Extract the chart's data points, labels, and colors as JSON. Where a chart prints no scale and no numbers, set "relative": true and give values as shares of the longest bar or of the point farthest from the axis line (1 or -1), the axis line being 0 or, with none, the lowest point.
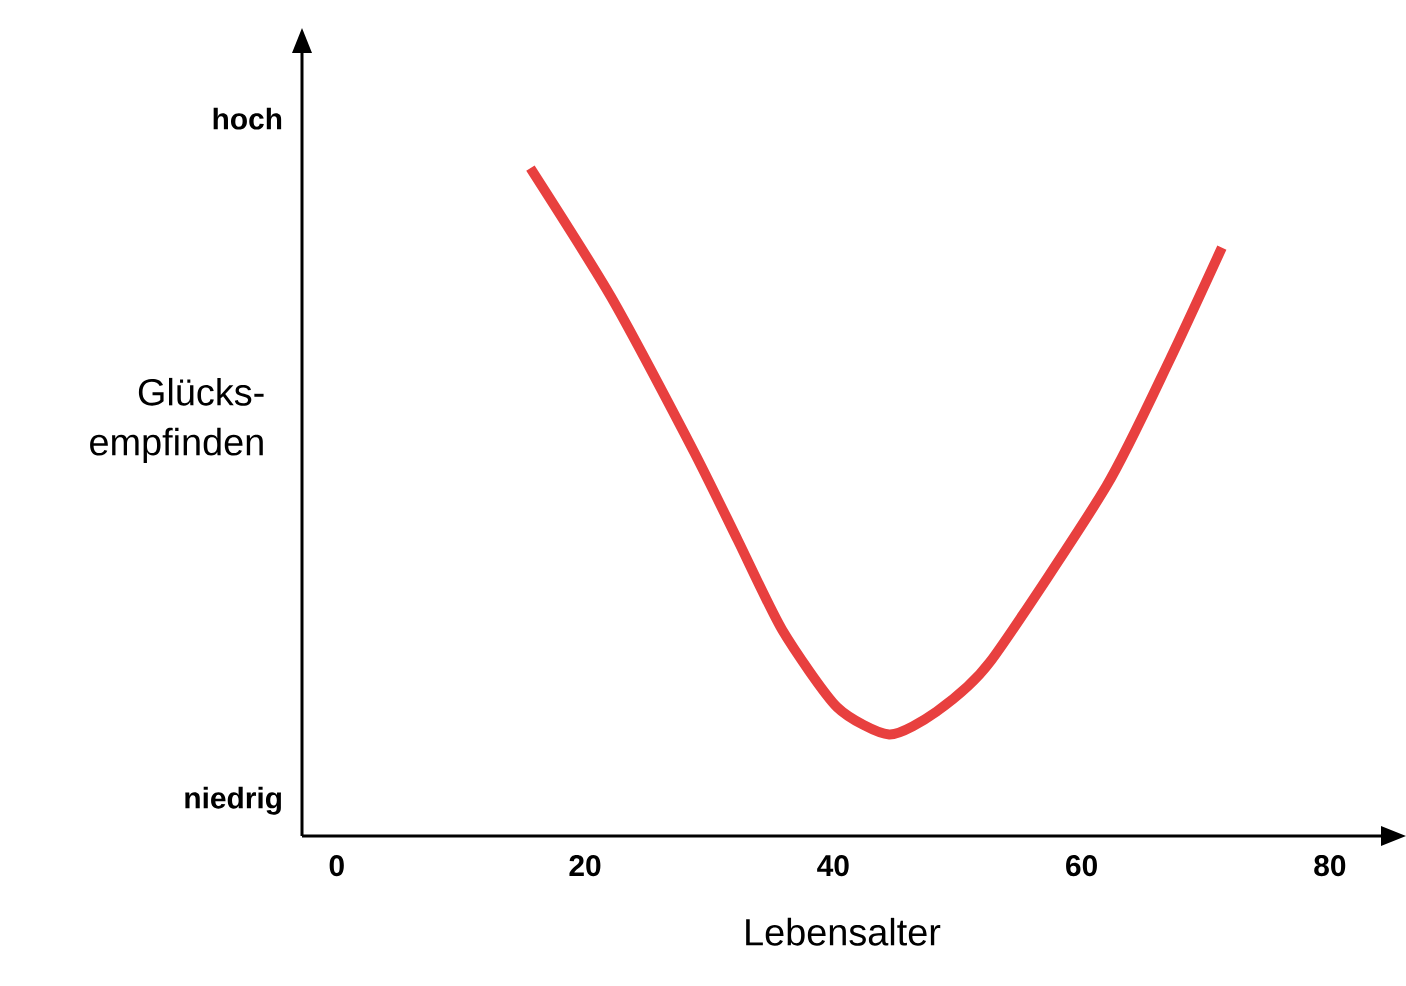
{
  "chart_data": {
    "type": "line",
    "xlabel": "Lebensalter",
    "ylabel": "Glücks-empfinden",
    "relative": true,
    "annotations": [
      "hoch",
      "niedrig"
    ],
    "x": [
      15.6,
      22.1,
      28.7,
      32.3,
      35.9,
      40.3,
      44.5,
      48.3,
      52.6,
      62.0,
      67.1,
      71.3
    ],
    "values": [
      1.0,
      0.807,
      0.578,
      0.443,
      0.308,
      0.193,
      0.152,
      0.186,
      0.26,
      0.524,
      0.713,
      0.881
    ],
    "color": "#e8403f",
    "xlim": [
      -2.8,
      84.2
    ],
    "xticks": [
      0,
      20,
      40,
      60,
      80
    ]
  }
}
